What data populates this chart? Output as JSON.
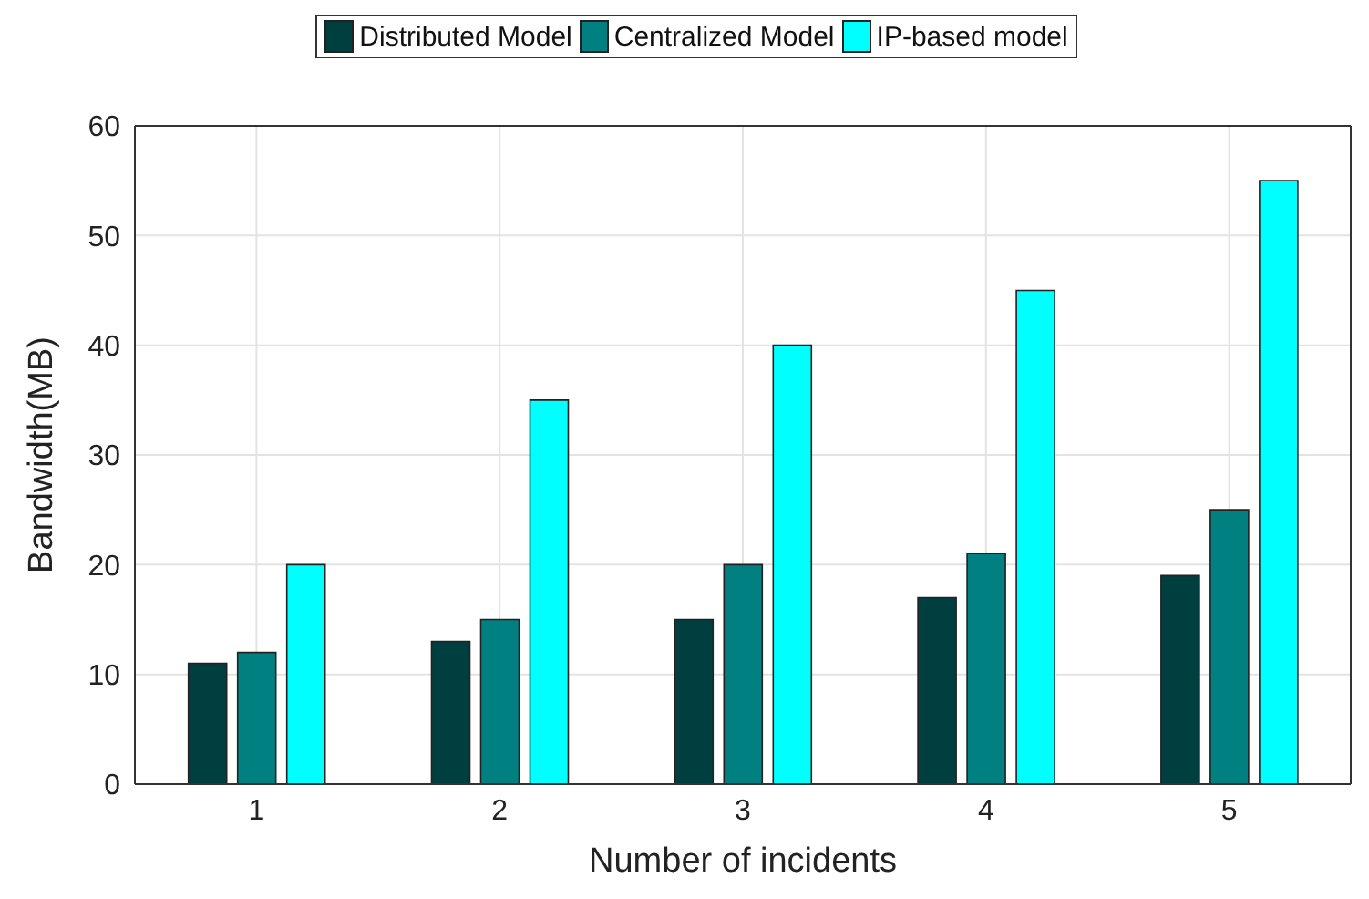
{
  "chart_data": {
    "type": "bar",
    "xlabel": "Number of incidents",
    "ylabel": "Bandwidth(MB)",
    "categories": [
      "1",
      "2",
      "3",
      "4",
      "5"
    ],
    "series": [
      {
        "name": "Distributed Model",
        "color": "#003f3f",
        "values": [
          11,
          13,
          15,
          17,
          19
        ]
      },
      {
        "name": "Centralized Model",
        "color": "#008080",
        "values": [
          12,
          15,
          20,
          21,
          25
        ]
      },
      {
        "name": "IP-based model",
        "color": "#00ffff",
        "values": [
          20,
          35,
          40,
          45,
          55
        ]
      }
    ],
    "ylim": [
      0,
      60
    ],
    "yticks": [
      0,
      10,
      20,
      30,
      40,
      50,
      60
    ],
    "grid": true,
    "legend": "top"
  }
}
